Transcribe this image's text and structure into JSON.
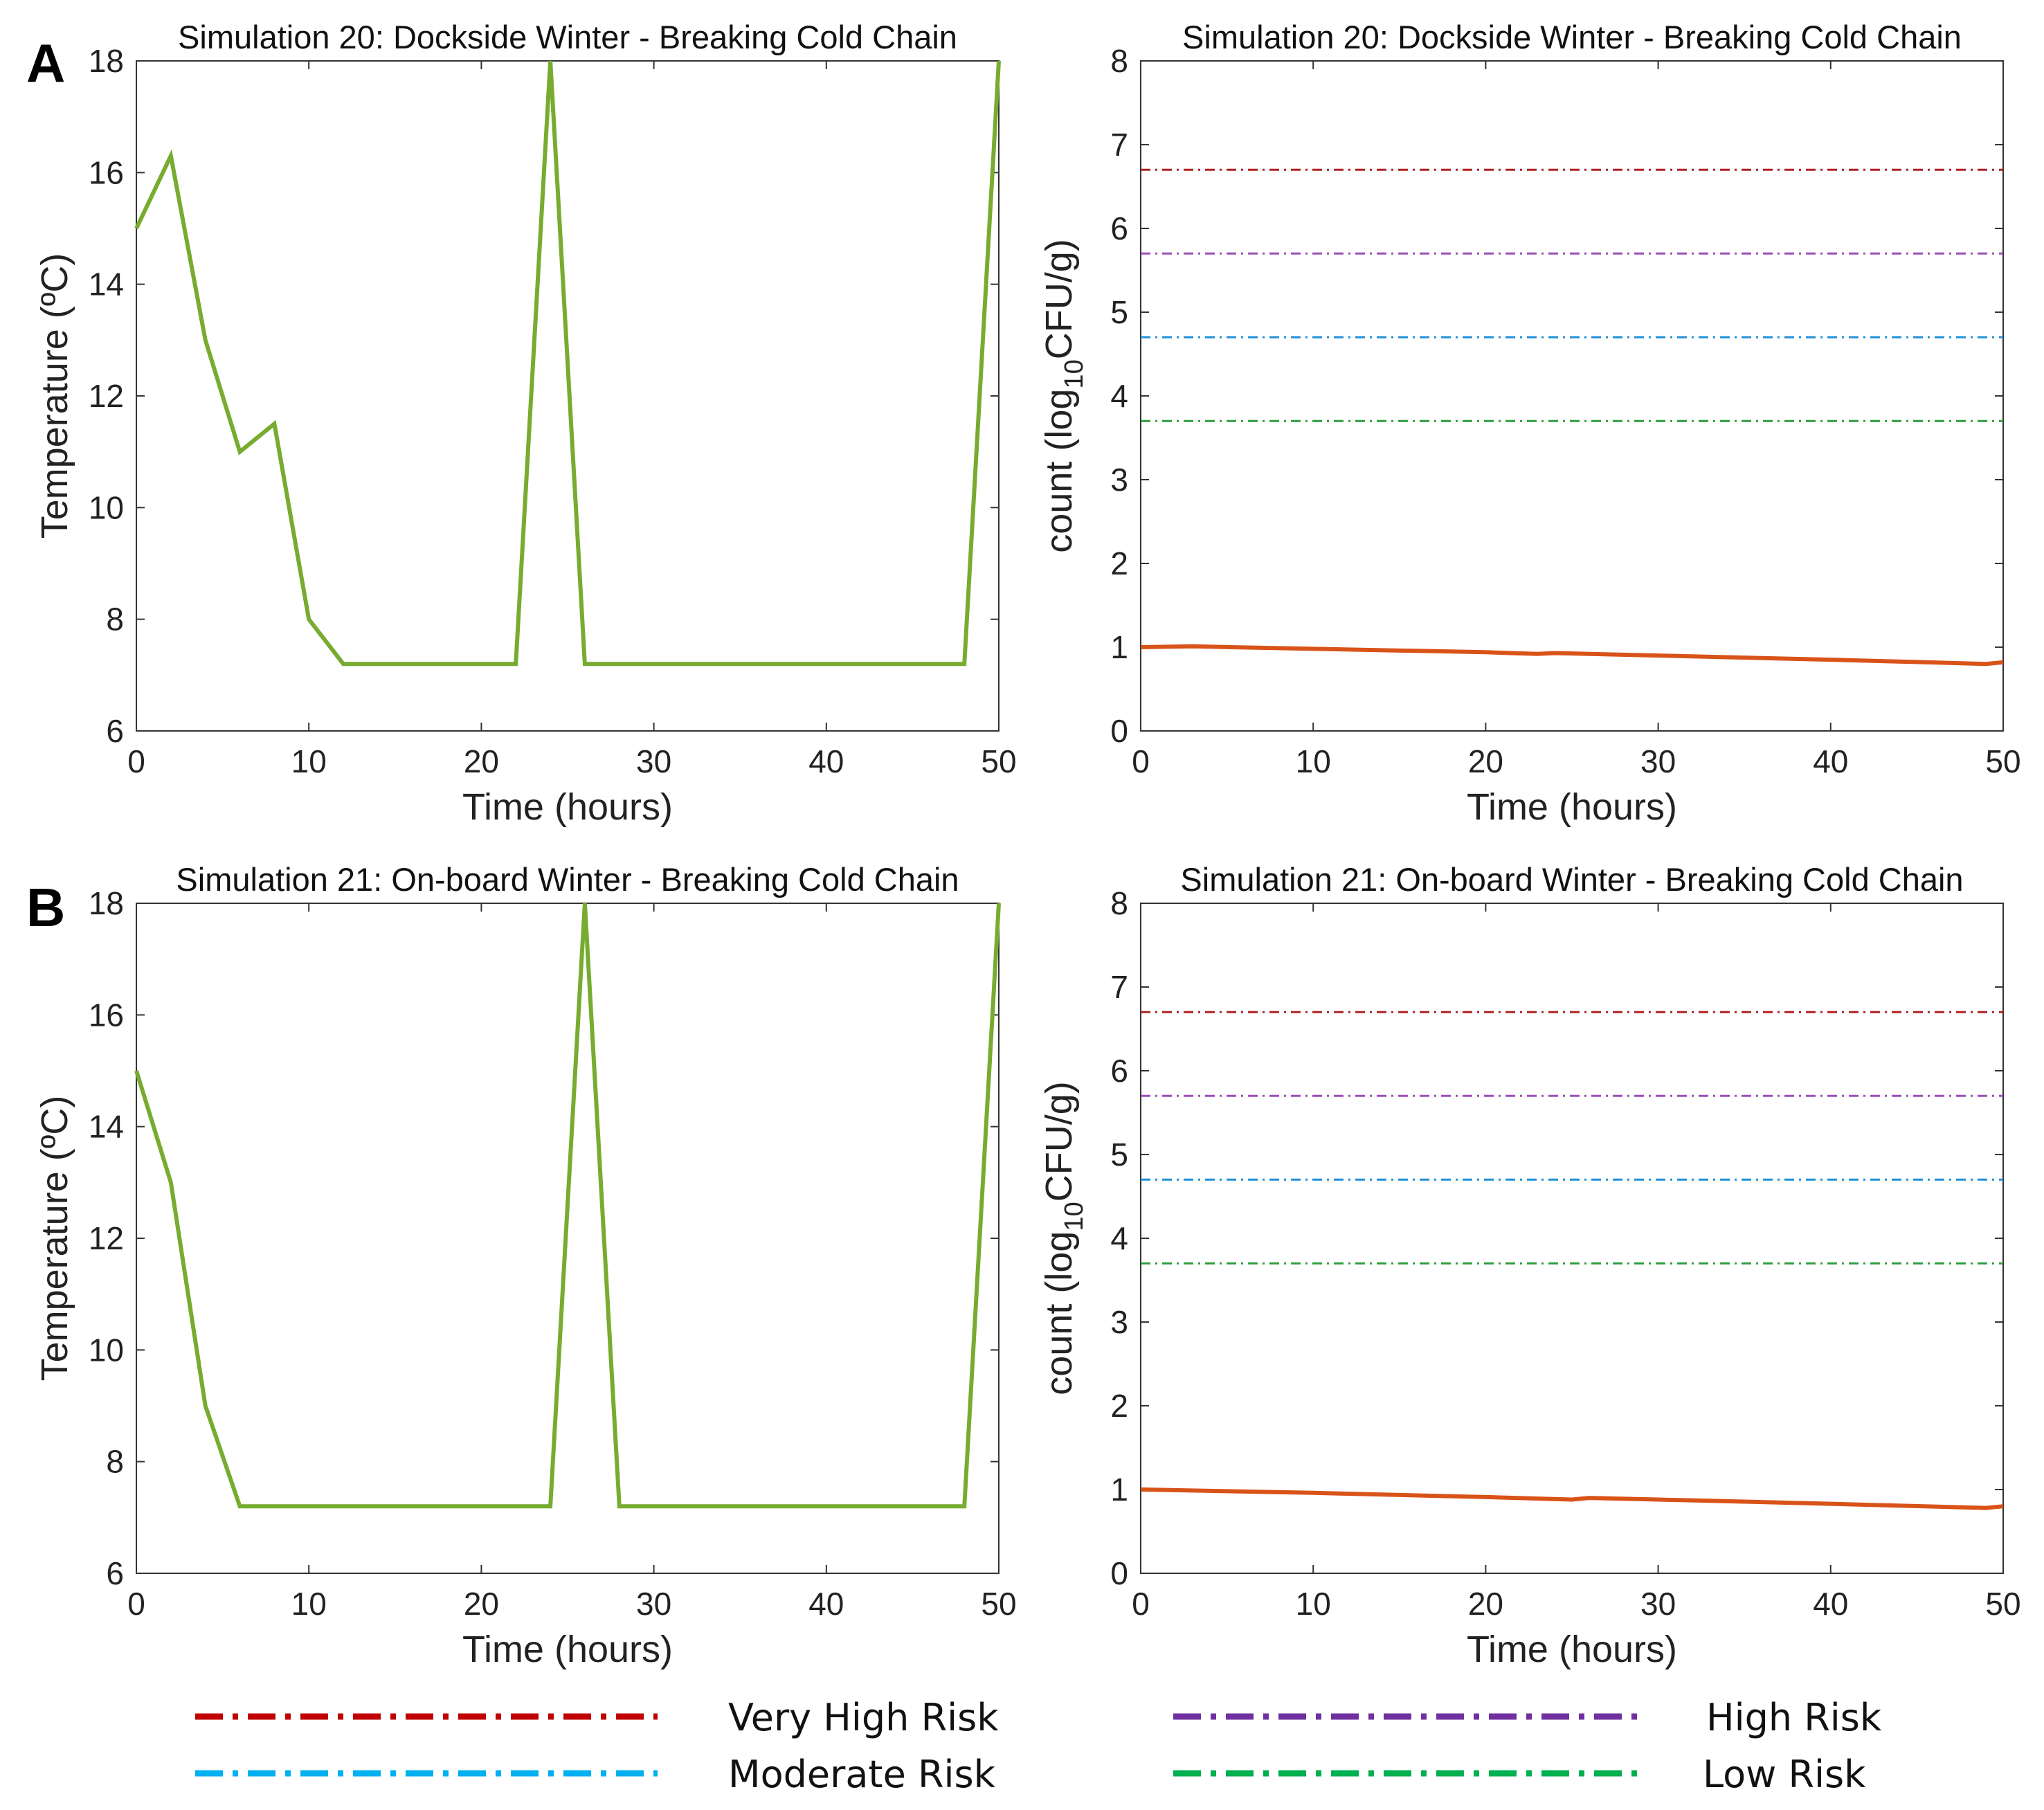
{
  "colors": {
    "temperature_line": "#77AC30",
    "count_line": "#D95319",
    "very_high_risk": "#B22222",
    "high_risk": "#9B4FB8",
    "moderate_risk": "#1E90D8",
    "low_risk": "#2E9E3E",
    "legend_very_high": "#C00000",
    "legend_high": "#7030A0",
    "legend_moderate": "#00B0F0",
    "legend_low": "#00B050"
  },
  "legend": {
    "very_high": "Very High Risk",
    "high": "High Risk",
    "moderate": "Moderate Risk",
    "low": "Low Risk"
  },
  "chart_data": [
    {
      "panel": "A",
      "type": "line",
      "title": "Simulation 20: Dockside Winter - Breaking Cold Chain",
      "xlabel": "Time (hours)",
      "ylabel": "Temperature (ºC)",
      "xlim": [
        0,
        50
      ],
      "ylim": [
        6,
        18
      ],
      "xticks": [
        0,
        10,
        20,
        30,
        40,
        50
      ],
      "yticks": [
        6,
        8,
        10,
        12,
        14,
        16,
        18
      ],
      "series": [
        {
          "name": "Temperature",
          "color_key": "temperature_line",
          "x": [
            0,
            2,
            4,
            6,
            8,
            10,
            12,
            22,
            24,
            26,
            48,
            50
          ],
          "y": [
            15,
            16.3,
            13,
            11,
            11.5,
            8,
            7.2,
            7.2,
            18,
            7.2,
            7.2,
            18
          ]
        }
      ]
    },
    {
      "panel": "A",
      "type": "line",
      "title": "Simulation 20: Dockside Winter - Breaking Cold Chain",
      "xlabel": "Time (hours)",
      "ylabel_main": "count (log",
      "ylabel_sub": "10",
      "ylabel_tail": "CFU/g)",
      "xlim": [
        0,
        50
      ],
      "ylim": [
        0,
        8
      ],
      "xticks": [
        0,
        10,
        20,
        30,
        40,
        50
      ],
      "yticks": [
        0,
        1,
        2,
        3,
        4,
        5,
        6,
        7,
        8
      ],
      "thresholds": [
        {
          "name": "Very High Risk",
          "value": 6.7,
          "color_key": "very_high_risk"
        },
        {
          "name": "High Risk",
          "value": 5.7,
          "color_key": "high_risk"
        },
        {
          "name": "Moderate Risk",
          "value": 4.7,
          "color_key": "moderate_risk"
        },
        {
          "name": "Low Risk",
          "value": 3.7,
          "color_key": "low_risk"
        }
      ],
      "series": [
        {
          "name": "Count",
          "color_key": "count_line",
          "x": [
            0,
            3,
            10,
            20,
            23,
            24,
            30,
            40,
            49,
            50
          ],
          "y": [
            1.0,
            1.01,
            0.98,
            0.94,
            0.92,
            0.93,
            0.9,
            0.85,
            0.8,
            0.82
          ]
        }
      ]
    },
    {
      "panel": "B",
      "type": "line",
      "title": "Simulation 21: On-board Winter - Breaking Cold Chain",
      "xlabel": "Time (hours)",
      "ylabel": "Temperature (ºC)",
      "xlim": [
        0,
        50
      ],
      "ylim": [
        6,
        18
      ],
      "xticks": [
        0,
        10,
        20,
        30,
        40,
        50
      ],
      "yticks": [
        6,
        8,
        10,
        12,
        14,
        16,
        18
      ],
      "series": [
        {
          "name": "Temperature",
          "color_key": "temperature_line",
          "x": [
            0,
            2,
            4,
            6,
            24,
            26,
            28,
            48,
            50
          ],
          "y": [
            15,
            13,
            9,
            7.2,
            7.2,
            18,
            7.2,
            7.2,
            18
          ]
        }
      ]
    },
    {
      "panel": "B",
      "type": "line",
      "title": "Simulation 21: On-board Winter - Breaking Cold Chain",
      "xlabel": "Time (hours)",
      "ylabel_main": "count (log",
      "ylabel_sub": "10",
      "ylabel_tail": "CFU/g)",
      "xlim": [
        0,
        50
      ],
      "ylim": [
        0,
        8
      ],
      "xticks": [
        0,
        10,
        20,
        30,
        40,
        50
      ],
      "yticks": [
        0,
        1,
        2,
        3,
        4,
        5,
        6,
        7,
        8
      ],
      "thresholds": [
        {
          "name": "Very High Risk",
          "value": 6.7,
          "color_key": "very_high_risk"
        },
        {
          "name": "High Risk",
          "value": 5.7,
          "color_key": "high_risk"
        },
        {
          "name": "Moderate Risk",
          "value": 4.7,
          "color_key": "moderate_risk"
        },
        {
          "name": "Low Risk",
          "value": 3.7,
          "color_key": "low_risk"
        }
      ],
      "series": [
        {
          "name": "Count",
          "color_key": "count_line",
          "x": [
            0,
            10,
            20,
            25,
            26,
            30,
            40,
            49,
            50
          ],
          "y": [
            1.0,
            0.96,
            0.91,
            0.88,
            0.9,
            0.88,
            0.83,
            0.78,
            0.8
          ]
        }
      ]
    }
  ]
}
